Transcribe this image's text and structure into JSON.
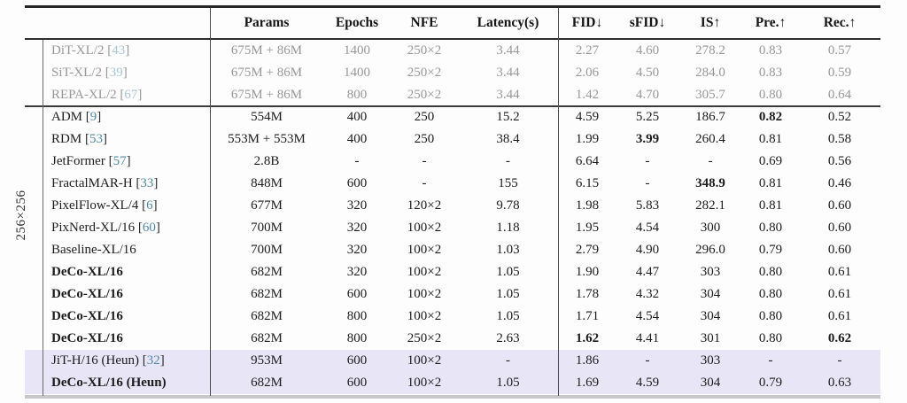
{
  "group_label": "256×256",
  "column_keys": [
    "params",
    "epochs",
    "nfe",
    "latency",
    "fid",
    "sfid",
    "is",
    "pre",
    "rec"
  ],
  "header": {
    "params": "Params",
    "epochs": "Epochs",
    "nfe": "NFE",
    "latency": "Latency(s)",
    "fid": "FID↓",
    "sfid": "sFID↓",
    "is": "IS↑",
    "pre": "Pre.↑",
    "rec": "Rec.↑"
  },
  "colors": {
    "text": "#1c1c1c",
    "muted_text": "#989898",
    "citation": "#4f8ba4",
    "citation_muted": "#a9c6d4",
    "highlight_bg": "#e8e5f6"
  },
  "rows": [
    {
      "model": "DiT-XL/2",
      "cite": "43",
      "muted": true,
      "bold_label": false,
      "highlight": false,
      "rule_after": false,
      "cells": [
        "675M + 86M",
        "1400",
        "250×2",
        "3.44",
        "2.27",
        "4.60",
        "278.2",
        "0.83",
        "0.57"
      ],
      "bold_cells": []
    },
    {
      "model": "SiT-XL/2",
      "cite": "39",
      "muted": true,
      "bold_label": false,
      "highlight": false,
      "rule_after": false,
      "cells": [
        "675M + 86M",
        "1400",
        "250×2",
        "3.44",
        "2.06",
        "4.50",
        "284.0",
        "0.83",
        "0.59"
      ],
      "bold_cells": []
    },
    {
      "model": "REPA-XL/2",
      "cite": "67",
      "muted": true,
      "bold_label": false,
      "highlight": false,
      "rule_after": true,
      "cells": [
        "675M + 86M",
        "800",
        "250×2",
        "3.44",
        "1.42",
        "4.70",
        "305.7",
        "0.80",
        "0.64"
      ],
      "bold_cells": []
    },
    {
      "model": "ADM",
      "cite": "9",
      "muted": false,
      "bold_label": false,
      "highlight": false,
      "rule_after": false,
      "cells": [
        "554M",
        "400",
        "250",
        "15.2",
        "4.59",
        "5.25",
        "186.7",
        "0.82",
        "0.52"
      ],
      "bold_cells": [
        7
      ]
    },
    {
      "model": "RDM",
      "cite": "53",
      "muted": false,
      "bold_label": false,
      "highlight": false,
      "rule_after": false,
      "cells": [
        "553M + 553M",
        "400",
        "250",
        "38.4",
        "1.99",
        "3.99",
        "260.4",
        "0.81",
        "0.58"
      ],
      "bold_cells": [
        5
      ]
    },
    {
      "model": "JetFormer",
      "cite": "57",
      "muted": false,
      "bold_label": false,
      "highlight": false,
      "rule_after": false,
      "cells": [
        "2.8B",
        "-",
        "-",
        "-",
        "6.64",
        "-",
        "-",
        "0.69",
        "0.56"
      ],
      "bold_cells": []
    },
    {
      "model": "FractalMAR-H",
      "cite": "33",
      "muted": false,
      "bold_label": false,
      "highlight": false,
      "rule_after": false,
      "cells": [
        "848M",
        "600",
        "-",
        "155",
        "6.15",
        "-",
        "348.9",
        "0.81",
        "0.46"
      ],
      "bold_cells": [
        6
      ]
    },
    {
      "model": "PixelFlow-XL/4",
      "cite": "6",
      "muted": false,
      "bold_label": false,
      "highlight": false,
      "rule_after": false,
      "cells": [
        "677M",
        "320",
        "120×2",
        "9.78",
        "1.98",
        "5.83",
        "282.1",
        "0.81",
        "0.60"
      ],
      "bold_cells": []
    },
    {
      "model": "PixNerd-XL/16",
      "cite": "60",
      "muted": false,
      "bold_label": false,
      "highlight": false,
      "rule_after": false,
      "cells": [
        "700M",
        "320",
        "100×2",
        "1.18",
        "1.95",
        "4.54",
        "300",
        "0.80",
        "0.60"
      ],
      "bold_cells": []
    },
    {
      "model": "Baseline-XL/16",
      "cite": null,
      "muted": false,
      "bold_label": false,
      "highlight": false,
      "rule_after": false,
      "cells": [
        "700M",
        "320",
        "100×2",
        "1.03",
        "2.79",
        "4.90",
        "296.0",
        "0.79",
        "0.60"
      ],
      "bold_cells": []
    },
    {
      "model": "DeCo-XL/16",
      "cite": null,
      "muted": false,
      "bold_label": true,
      "highlight": false,
      "rule_after": false,
      "cells": [
        "682M",
        "320",
        "100×2",
        "1.05",
        "1.90",
        "4.47",
        "303",
        "0.80",
        "0.61"
      ],
      "bold_cells": []
    },
    {
      "model": "DeCo-XL/16",
      "cite": null,
      "muted": false,
      "bold_label": true,
      "highlight": false,
      "rule_after": false,
      "cells": [
        "682M",
        "600",
        "100×2",
        "1.05",
        "1.78",
        "4.32",
        "304",
        "0.80",
        "0.61"
      ],
      "bold_cells": []
    },
    {
      "model": "DeCo-XL/16",
      "cite": null,
      "muted": false,
      "bold_label": true,
      "highlight": false,
      "rule_after": false,
      "cells": [
        "682M",
        "800",
        "100×2",
        "1.05",
        "1.71",
        "4.54",
        "304",
        "0.80",
        "0.61"
      ],
      "bold_cells": []
    },
    {
      "model": "DeCo-XL/16",
      "cite": null,
      "muted": false,
      "bold_label": true,
      "highlight": false,
      "rule_after": false,
      "cells": [
        "682M",
        "800",
        "250×2",
        "2.63",
        "1.62",
        "4.41",
        "301",
        "0.80",
        "0.62"
      ],
      "bold_cells": [
        4,
        8
      ]
    },
    {
      "model": "JiT-H/16 (Heun)",
      "cite": "32",
      "muted": false,
      "bold_label": false,
      "highlight": true,
      "rule_after": false,
      "cells": [
        "953M",
        "600",
        "100×2",
        "-",
        "1.86",
        "-",
        "303",
        "-",
        "-"
      ],
      "bold_cells": []
    },
    {
      "model": "DeCo-XL/16 (Heun)",
      "cite": null,
      "muted": false,
      "bold_label": true,
      "highlight": true,
      "rule_after": false,
      "cells": [
        "682M",
        "600",
        "100×2",
        "1.05",
        "1.69",
        "4.59",
        "304",
        "0.79",
        "0.63"
      ],
      "bold_cells": []
    }
  ]
}
